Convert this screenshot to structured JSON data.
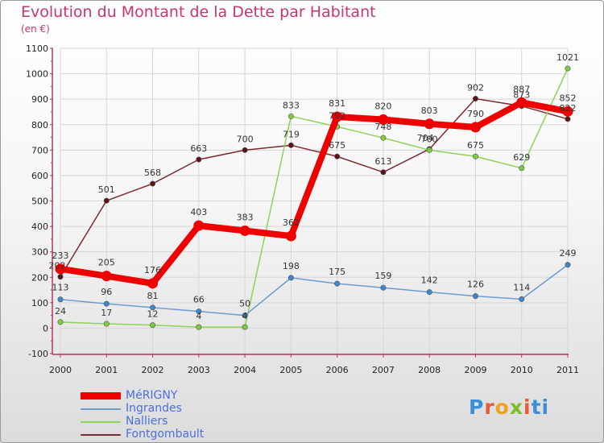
{
  "chart_data": {
    "type": "line",
    "title": "Evolution du Montant de la Dette par Habitant",
    "subtitle": "(en €)",
    "categories": [
      "2000",
      "2001",
      "2002",
      "2003",
      "2004",
      "2005",
      "2006",
      "2007",
      "2008",
      "2009",
      "2010",
      "2011"
    ],
    "ylim": [
      -100,
      1100
    ],
    "yticks": [
      -100,
      0,
      100,
      200,
      300,
      400,
      500,
      600,
      700,
      800,
      900,
      1000,
      1100
    ],
    "grid": true,
    "legend_position": "bottom-left",
    "series": [
      {
        "name": "Fontgombault",
        "color": "#7a2a30",
        "marker": "#5a1418",
        "values": [
          202,
          501,
          568,
          663,
          700,
          719,
          675,
          613,
          704,
          902,
          873,
          822
        ]
      },
      {
        "name": "Nalliers",
        "color": "#8ed25a",
        "marker": "#7ccd3c",
        "values": [
          24,
          17,
          12,
          4,
          4,
          833,
          792,
          748,
          700,
          675,
          629,
          1021
        ]
      },
      {
        "name": "Ingrandes",
        "color": "#6a9ccf",
        "marker": "#3f86cc",
        "values": [
          113,
          96,
          81,
          66,
          50,
          198,
          175,
          159,
          142,
          126,
          114,
          249
        ]
      },
      {
        "name": "MéRIGNY",
        "color": "#ee0000",
        "marker": "#ee0000",
        "values": [
          233,
          205,
          176,
          403,
          383,
          362,
          831,
          820,
          803,
          790,
          887,
          852
        ]
      }
    ]
  },
  "legend": [
    {
      "label": "MéRIGNY",
      "color": "#ee0000"
    },
    {
      "label": "Ingrandes",
      "color": "#6a9ccf"
    },
    {
      "label": "Nalliers",
      "color": "#8ed25a"
    },
    {
      "label": "Fontgombault",
      "color": "#7a2a30"
    }
  ],
  "logo": {
    "letters": [
      "P",
      "r",
      "o",
      "x",
      "i",
      "t",
      "i"
    ]
  }
}
